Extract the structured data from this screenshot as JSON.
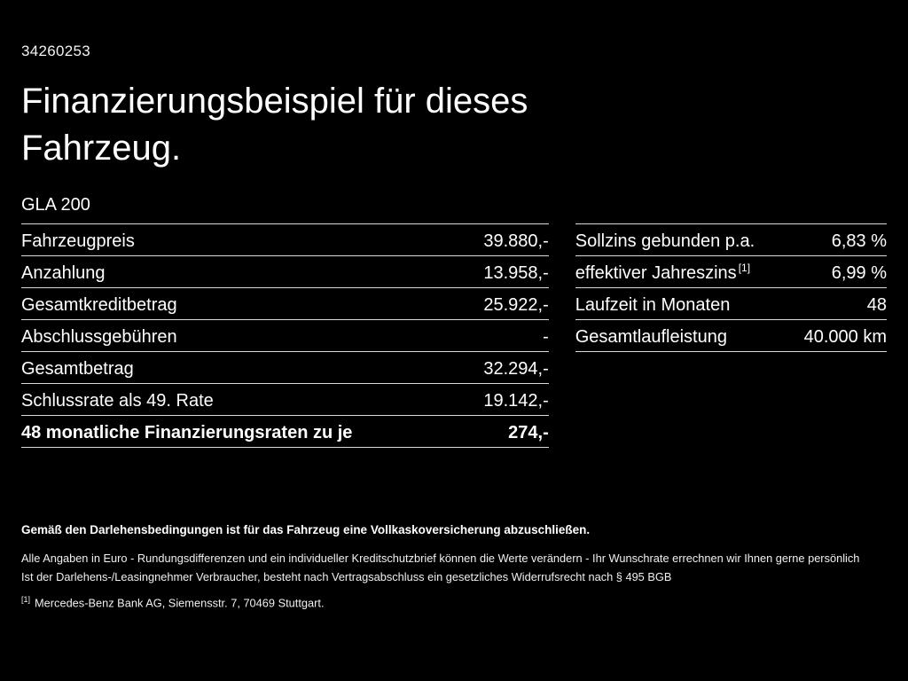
{
  "header": {
    "reference_number": "34260253",
    "title": "Finanzierungsbeispiel für dieses Fahrzeug.",
    "vehicle_model": "GLA 200"
  },
  "financing_table": {
    "rows": [
      {
        "label": "Fahrzeugpreis",
        "value": "39.880,-"
      },
      {
        "label": "Anzahlung",
        "value": "13.958,-"
      },
      {
        "label": "Gesamtkreditbetrag",
        "value": "25.922,-"
      },
      {
        "label": "Abschlussgebühren",
        "value": "-"
      },
      {
        "label": "Gesamtbetrag",
        "value": "32.294,-"
      },
      {
        "label": "Schlussrate als 49. Rate",
        "value": "19.142,-"
      },
      {
        "label": "48 monatliche Finanzierungsraten zu je",
        "value": "274,-"
      }
    ]
  },
  "conditions_table": {
    "rows": [
      {
        "label": "Sollzins gebunden p.a.",
        "sup": "",
        "value": "6,83 %"
      },
      {
        "label": "effektiver Jahreszins",
        "sup": "[1]",
        "value": "6,99 %"
      },
      {
        "label": "Laufzeit in Monaten",
        "sup": "",
        "value": "48"
      },
      {
        "label": "Gesamtlaufleistung",
        "sup": "",
        "value": "40.000 km"
      }
    ]
  },
  "footer": {
    "insurance_note": "Gemäß den Darlehensbedingungen ist für das Fahrzeug eine Vollkaskoversicherung abzuschließen.",
    "note_line_1": "Alle Angaben in Euro - Rundungsdifferenzen und ein individueller Kreditschutzbrief können die Werte verändern - Ihr Wunschrate errechnen wir Ihnen gerne persönlich",
    "note_line_2": "Ist der Darlehens-/Leasingnehmer Verbraucher, besteht nach Vertragsabschluss ein gesetzliches Widerrufsrecht nach § 495 BGB",
    "footnote_marker": "[1]",
    "footnote_text": "Mercedes-Benz Bank AG, Siemensstr. 7, 70469 Stuttgart."
  },
  "colors": {
    "background": "#000000",
    "text": "#ffffff",
    "divider": "#dcdcdc"
  }
}
